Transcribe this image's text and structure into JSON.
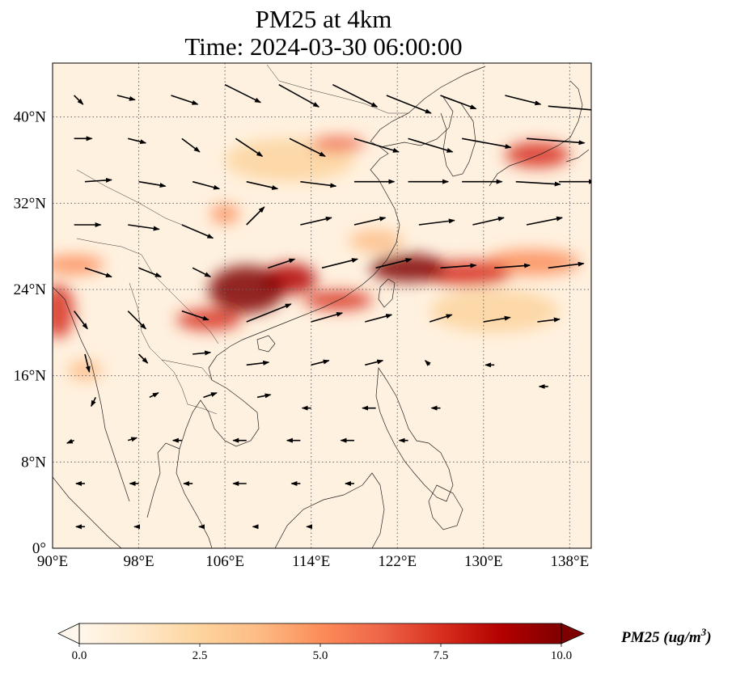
{
  "title": {
    "line1": "PM25 at 4km",
    "line2": "Time: 2024-03-30 06:00:00"
  },
  "map": {
    "projection": "PlateCarree",
    "lon_range": [
      90,
      140
    ],
    "lat_range": [
      0,
      45
    ],
    "x_ticks": [
      {
        "value": 90,
        "label": "90°E"
      },
      {
        "value": 98,
        "label": "98°E"
      },
      {
        "value": 106,
        "label": "106°E"
      },
      {
        "value": 114,
        "label": "114°E"
      },
      {
        "value": 122,
        "label": "122°E"
      },
      {
        "value": 130,
        "label": "130°E"
      },
      {
        "value": 138,
        "label": "138°E"
      }
    ],
    "y_ticks": [
      {
        "value": 0,
        "label": "0°"
      },
      {
        "value": 8,
        "label": "8°N"
      },
      {
        "value": 16,
        "label": "16°N"
      },
      {
        "value": 24,
        "label": "24°N"
      },
      {
        "value": 32,
        "label": "32°N"
      },
      {
        "value": 40,
        "label": "40°N"
      }
    ],
    "gridlines": "dotted",
    "coastlines": true,
    "colormap": "OrRd",
    "pm25_plumes": [
      {
        "lon": 108.0,
        "lat": 24.0,
        "rlon": 3.5,
        "rlat": 2.2,
        "value": 10.0
      },
      {
        "lon": 112.0,
        "lat": 25.0,
        "rlon": 2.5,
        "rlat": 1.4,
        "value": 9.0
      },
      {
        "lon": 104.5,
        "lat": 21.2,
        "rlon": 3.0,
        "rlat": 1.0,
        "value": 8.0
      },
      {
        "lon": 116.5,
        "lat": 23.0,
        "rlon": 3.2,
        "rlat": 0.9,
        "value": 8.0
      },
      {
        "lon": 123.0,
        "lat": 26.0,
        "rlon": 3.5,
        "rlat": 1.3,
        "value": 9.5
      },
      {
        "lon": 128.5,
        "lat": 25.5,
        "rlon": 4.0,
        "rlat": 1.2,
        "value": 7.0
      },
      {
        "lon": 134.5,
        "lat": 26.5,
        "rlon": 4.5,
        "rlat": 1.2,
        "value": 5.0
      },
      {
        "lon": 135.0,
        "lat": 36.5,
        "rlon": 3.0,
        "rlat": 1.2,
        "value": 7.5
      },
      {
        "lon": 116.5,
        "lat": 37.5,
        "rlon": 2.5,
        "rlat": 0.7,
        "value": 6.0
      },
      {
        "lon": 106.0,
        "lat": 31.0,
        "rlon": 1.3,
        "rlat": 0.9,
        "value": 5.5
      },
      {
        "lon": 90.5,
        "lat": 22.0,
        "rlon": 1.5,
        "rlat": 2.5,
        "value": 7.0
      },
      {
        "lon": 92.0,
        "lat": 26.3,
        "rlon": 2.8,
        "rlat": 0.9,
        "value": 4.5
      },
      {
        "lon": 93.0,
        "lat": 16.5,
        "rlon": 1.6,
        "rlat": 0.9,
        "value": 3.5
      },
      {
        "lon": 120.0,
        "lat": 28.5,
        "rlon": 2.5,
        "rlat": 1.0,
        "value": 4.0
      },
      {
        "lon": 112.0,
        "lat": 36.0,
        "rlon": 6.0,
        "rlat": 2.0,
        "value": 2.5
      },
      {
        "lon": 131.0,
        "lat": 22.0,
        "rlon": 6.0,
        "rlat": 2.0,
        "value": 2.0
      }
    ],
    "wind_vectors": [
      {
        "lon": 92,
        "lat": 42,
        "u": 1.0,
        "v": -1.0
      },
      {
        "lon": 96,
        "lat": 42,
        "u": 2.0,
        "v": -0.5
      },
      {
        "lon": 101,
        "lat": 42,
        "u": 3.0,
        "v": -1.0
      },
      {
        "lon": 106,
        "lat": 43,
        "u": 4.0,
        "v": -2.0
      },
      {
        "lon": 111,
        "lat": 43,
        "u": 4.5,
        "v": -2.5
      },
      {
        "lon": 116,
        "lat": 43,
        "u": 5.0,
        "v": -2.5
      },
      {
        "lon": 121,
        "lat": 42,
        "u": 5.0,
        "v": -2.0
      },
      {
        "lon": 126,
        "lat": 42,
        "u": 4.0,
        "v": -1.5
      },
      {
        "lon": 132,
        "lat": 42,
        "u": 4.0,
        "v": -1.0
      },
      {
        "lon": 136,
        "lat": 41,
        "u": 6.0,
        "v": -0.5
      },
      {
        "lon": 92,
        "lat": 38,
        "u": 2.0,
        "v": 0.0
      },
      {
        "lon": 97,
        "lat": 38,
        "u": 2.0,
        "v": -0.5
      },
      {
        "lon": 102,
        "lat": 38,
        "u": 2.0,
        "v": -1.5
      },
      {
        "lon": 107,
        "lat": 38,
        "u": 3.0,
        "v": -2.0
      },
      {
        "lon": 112,
        "lat": 38,
        "u": 4.0,
        "v": -2.0
      },
      {
        "lon": 118,
        "lat": 38,
        "u": 5.0,
        "v": -1.5
      },
      {
        "lon": 123,
        "lat": 38,
        "u": 5.0,
        "v": -1.5
      },
      {
        "lon": 128,
        "lat": 38,
        "u": 5.5,
        "v": -1.0
      },
      {
        "lon": 134,
        "lat": 38,
        "u": 6.5,
        "v": -0.5
      },
      {
        "lon": 93,
        "lat": 34,
        "u": 3.0,
        "v": 0.2
      },
      {
        "lon": 98,
        "lat": 34,
        "u": 3.0,
        "v": -0.5
      },
      {
        "lon": 103,
        "lat": 34,
        "u": 3.0,
        "v": -0.8
      },
      {
        "lon": 108,
        "lat": 34,
        "u": 3.5,
        "v": -0.8
      },
      {
        "lon": 113,
        "lat": 34,
        "u": 4.0,
        "v": -0.5
      },
      {
        "lon": 118,
        "lat": 34,
        "u": 4.5,
        "v": 0.0
      },
      {
        "lon": 123,
        "lat": 34,
        "u": 4.5,
        "v": 0.0
      },
      {
        "lon": 128,
        "lat": 34,
        "u": 4.5,
        "v": 0.0
      },
      {
        "lon": 133,
        "lat": 34,
        "u": 5.0,
        "v": -0.3
      },
      {
        "lon": 137,
        "lat": 34,
        "u": 4.0,
        "v": 0.0
      },
      {
        "lon": 92,
        "lat": 30,
        "u": 3.0,
        "v": 0.0
      },
      {
        "lon": 97,
        "lat": 30,
        "u": 3.5,
        "v": -0.5
      },
      {
        "lon": 102,
        "lat": 30,
        "u": 3.5,
        "v": -1.5
      },
      {
        "lon": 108,
        "lat": 30,
        "u": 2.0,
        "v": 2.0
      },
      {
        "lon": 113,
        "lat": 30,
        "u": 3.5,
        "v": 0.8
      },
      {
        "lon": 118,
        "lat": 30,
        "u": 3.5,
        "v": 0.8
      },
      {
        "lon": 124,
        "lat": 30,
        "u": 4.0,
        "v": 0.5
      },
      {
        "lon": 129,
        "lat": 30,
        "u": 3.5,
        "v": 0.8
      },
      {
        "lon": 134,
        "lat": 30,
        "u": 4.0,
        "v": 0.8
      },
      {
        "lon": 93,
        "lat": 26,
        "u": 3.0,
        "v": -1.0
      },
      {
        "lon": 98,
        "lat": 26,
        "u": 2.5,
        "v": -1.0
      },
      {
        "lon": 103,
        "lat": 26,
        "u": 2.0,
        "v": -1.0
      },
      {
        "lon": 110,
        "lat": 26,
        "u": 3.0,
        "v": 1.0
      },
      {
        "lon": 115,
        "lat": 26,
        "u": 4.0,
        "v": 1.0
      },
      {
        "lon": 120,
        "lat": 26,
        "u": 4.0,
        "v": 1.0
      },
      {
        "lon": 126,
        "lat": 26,
        "u": 4.0,
        "v": 0.3
      },
      {
        "lon": 131,
        "lat": 26,
        "u": 4.0,
        "v": 0.3
      },
      {
        "lon": 136,
        "lat": 26,
        "u": 4.0,
        "v": 0.5
      },
      {
        "lon": 92,
        "lat": 22,
        "u": 1.5,
        "v": -2.0
      },
      {
        "lon": 97,
        "lat": 22,
        "u": 2.0,
        "v": -2.0
      },
      {
        "lon": 102,
        "lat": 22,
        "u": 3.0,
        "v": -1.0
      },
      {
        "lon": 108,
        "lat": 21,
        "u": 5.0,
        "v": 2.0
      },
      {
        "lon": 114,
        "lat": 21,
        "u": 3.5,
        "v": 1.0
      },
      {
        "lon": 119,
        "lat": 21,
        "u": 3.0,
        "v": 0.8
      },
      {
        "lon": 125,
        "lat": 21,
        "u": 2.5,
        "v": 0.8
      },
      {
        "lon": 130,
        "lat": 21,
        "u": 3.0,
        "v": 0.5
      },
      {
        "lon": 135,
        "lat": 21,
        "u": 2.5,
        "v": 0.3
      },
      {
        "lon": 93,
        "lat": 18,
        "u": 0.5,
        "v": -2.0
      },
      {
        "lon": 98,
        "lat": 18,
        "u": 1.0,
        "v": -1.0
      },
      {
        "lon": 103,
        "lat": 18,
        "u": 2.0,
        "v": 0.2
      },
      {
        "lon": 108,
        "lat": 17,
        "u": 2.5,
        "v": 0.3
      },
      {
        "lon": 114,
        "lat": 17,
        "u": 2.0,
        "v": 0.5
      },
      {
        "lon": 119,
        "lat": 17,
        "u": 2.0,
        "v": 0.5
      },
      {
        "lon": 125,
        "lat": 17,
        "u": -0.5,
        "v": 0.5
      },
      {
        "lon": 131,
        "lat": 17,
        "u": -1.0,
        "v": 0.0
      },
      {
        "lon": 136,
        "lat": 15,
        "u": -1.0,
        "v": 0.0
      },
      {
        "lon": 94,
        "lat": 14,
        "u": -0.5,
        "v": -1.0
      },
      {
        "lon": 99,
        "lat": 14,
        "u": 1.0,
        "v": 0.5
      },
      {
        "lon": 104,
        "lat": 14,
        "u": 1.5,
        "v": 0.5
      },
      {
        "lon": 109,
        "lat": 14,
        "u": 1.5,
        "v": 0.3
      },
      {
        "lon": 114,
        "lat": 13,
        "u": -1.0,
        "v": 0.0
      },
      {
        "lon": 120,
        "lat": 13,
        "u": -1.5,
        "v": 0.0
      },
      {
        "lon": 126,
        "lat": 13,
        "u": -1.0,
        "v": 0.0
      },
      {
        "lon": 92,
        "lat": 10,
        "u": -0.8,
        "v": -0.3
      },
      {
        "lon": 97,
        "lat": 10,
        "u": 1.0,
        "v": 0.3
      },
      {
        "lon": 102,
        "lat": 10,
        "u": -1.0,
        "v": 0.0
      },
      {
        "lon": 108,
        "lat": 10,
        "u": -1.5,
        "v": 0.0
      },
      {
        "lon": 113,
        "lat": 10,
        "u": -1.5,
        "v": 0.0
      },
      {
        "lon": 118,
        "lat": 10,
        "u": -1.5,
        "v": 0.0
      },
      {
        "lon": 123,
        "lat": 10,
        "u": -1.0,
        "v": 0.0
      },
      {
        "lon": 93,
        "lat": 6,
        "u": -1.0,
        "v": 0.0
      },
      {
        "lon": 98,
        "lat": 6,
        "u": -1.0,
        "v": 0.0
      },
      {
        "lon": 103,
        "lat": 6,
        "u": -1.0,
        "v": 0.0
      },
      {
        "lon": 108,
        "lat": 6,
        "u": -1.5,
        "v": 0.0
      },
      {
        "lon": 113,
        "lat": 6,
        "u": -1.0,
        "v": 0.0
      },
      {
        "lon": 118,
        "lat": 6,
        "u": -1.0,
        "v": 0.0
      },
      {
        "lon": 93,
        "lat": 2,
        "u": -1.0,
        "v": 0.0
      },
      {
        "lon": 98,
        "lat": 2,
        "u": -0.5,
        "v": 0.0
      },
      {
        "lon": 104,
        "lat": 2,
        "u": -0.5,
        "v": 0.0
      },
      {
        "lon": 109,
        "lat": 2,
        "u": -0.5,
        "v": 0.0
      },
      {
        "lon": 114,
        "lat": 2,
        "u": -0.5,
        "v": 0.0
      }
    ]
  },
  "colorbar": {
    "min": 0.0,
    "max": 10.0,
    "extend": "both",
    "ticks": [
      {
        "value": 0.0,
        "label": "0.0"
      },
      {
        "value": 2.5,
        "label": "2.5"
      },
      {
        "value": 5.0,
        "label": "5.0"
      },
      {
        "value": 7.5,
        "label": "7.5"
      },
      {
        "value": 10.0,
        "label": "10.0"
      }
    ],
    "label": "PM25 (ug/m",
    "label_superscript": "3",
    "label_close": ")",
    "colors": [
      "#fff7ec",
      "#fee8c8",
      "#fdd49e",
      "#fdbb84",
      "#fc8d59",
      "#ef6548",
      "#d7301f",
      "#b30000",
      "#7f0000"
    ]
  }
}
